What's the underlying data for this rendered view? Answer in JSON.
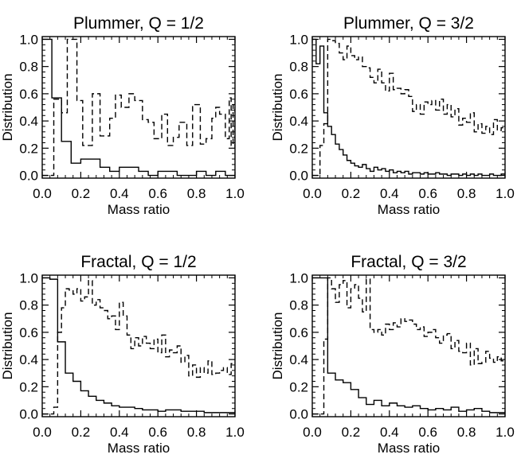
{
  "chart_data": [
    {
      "type": "step",
      "title": "Plummer, Q = 1/2",
      "xlabel": "Mass ratio",
      "ylabel": "Distribution",
      "xlim": [
        0,
        1
      ],
      "ylim": [
        -0.02,
        1.02
      ],
      "xticks": [
        "0.0",
        "0.2",
        "0.4",
        "0.6",
        "0.8",
        "1.0"
      ],
      "yticks": [
        "0.0",
        "0.2",
        "0.4",
        "0.6",
        "0.8",
        "1.0"
      ],
      "series": [
        {
          "style": "solid",
          "bin_width": 0.05,
          "values": [
            1.0,
            0.57,
            0.25,
            0.09,
            0.12,
            0.12,
            0.06,
            0.03,
            0.06,
            0.06,
            0.03,
            0.0,
            0.03,
            0.03,
            0.0,
            0.0,
            0.03,
            0.0,
            0.03,
            0.0
          ]
        },
        {
          "style": "dashed",
          "bin_width": 0.05,
          "values": [
            0.0,
            0.0,
            0.56,
            0.46,
            1.0,
            0.55,
            0.22,
            0.6,
            0.29,
            0.42,
            0.59,
            0.5,
            0.6,
            0.55,
            0.41,
            0.39,
            0.27,
            0.45,
            0.22,
            0.28,
            0.39,
            0.22,
            0.52,
            0.23,
            0.27,
            0.42,
            0.5,
            0.45,
            0.27,
            0.57,
            0.22,
            0.52,
            0.3,
            0.38,
            0.2,
            0.4,
            0.27,
            0.24
          ],
          "x": [
            0.0,
            0.05,
            0.06,
            0.1,
            0.13,
            0.18,
            0.21,
            0.26,
            0.3,
            0.35,
            0.38,
            0.41,
            0.45,
            0.48,
            0.52,
            0.55,
            0.58,
            0.62,
            0.65,
            0.68,
            0.71,
            0.75,
            0.78,
            0.82,
            0.85,
            0.88,
            0.9,
            0.92,
            0.95,
            0.97,
            0.98,
            0.99,
            1.0,
            1.0,
            1.0,
            1.0,
            1.0,
            1.0
          ]
        }
      ]
    },
    {
      "type": "step",
      "title": "Plummer, Q = 3/2",
      "xlabel": "Mass ratio",
      "ylabel": "Distribution",
      "xlim": [
        0,
        1
      ],
      "ylim": [
        -0.02,
        1.02
      ],
      "xticks": [
        "0.0",
        "0.2",
        "0.4",
        "0.6",
        "0.8",
        "1.0"
      ],
      "yticks": [
        "0.0",
        "0.2",
        "0.4",
        "0.6",
        "0.8",
        "1.0"
      ],
      "series": [
        {
          "style": "solid",
          "bin_width": 0.02,
          "values": [
            1.0,
            0.82,
            0.95,
            0.46,
            0.36,
            0.3,
            0.23,
            0.19,
            0.15,
            0.11,
            0.09,
            0.07,
            0.06,
            0.08,
            0.05,
            0.03,
            0.06,
            0.04,
            0.05,
            0.03,
            0.04,
            0.02,
            0.03,
            0.02,
            0.03,
            0.01,
            0.02,
            0.02,
            0.01,
            0.02,
            0.01,
            0.01,
            0.02,
            0.01,
            0.01,
            0.0,
            0.01,
            0.01,
            0.0,
            0.01,
            0.0,
            0.01,
            0.0,
            0.01,
            0.0,
            0.0,
            0.01,
            0.0,
            0.0,
            0.01
          ]
        },
        {
          "style": "dashed",
          "bin_width": 0.02,
          "values": [
            0.0,
            0.0,
            0.22,
            0.38,
            1.0,
            0.99,
            0.97,
            0.9,
            0.85,
            0.95,
            0.88,
            0.85,
            0.87,
            0.8,
            0.79,
            0.72,
            0.68,
            0.78,
            0.68,
            0.62,
            0.75,
            0.63,
            0.64,
            0.6,
            0.63,
            0.58,
            0.47,
            0.52,
            0.45,
            0.54,
            0.52,
            0.55,
            0.48,
            0.56,
            0.45,
            0.52,
            0.43,
            0.49,
            0.37,
            0.42,
            0.39,
            0.46,
            0.32,
            0.38,
            0.31,
            0.36,
            0.3,
            0.41,
            0.33,
            0.35
          ]
        }
      ]
    },
    {
      "type": "step",
      "title": "Fractal, Q = 1/2",
      "xlabel": "Mass ratio",
      "ylabel": "Distribution",
      "xlim": [
        0,
        1
      ],
      "ylim": [
        -0.02,
        1.02
      ],
      "xticks": [
        "0.0",
        "0.2",
        "0.4",
        "0.6",
        "0.8",
        "1.0"
      ],
      "yticks": [
        "0.0",
        "0.2",
        "0.4",
        "0.6",
        "0.8",
        "1.0"
      ],
      "series": [
        {
          "style": "solid",
          "bin_width": 0.04,
          "values": [
            1.0,
            0.99,
            0.53,
            0.3,
            0.24,
            0.17,
            0.13,
            0.1,
            0.08,
            0.06,
            0.05,
            0.05,
            0.04,
            0.03,
            0.03,
            0.02,
            0.03,
            0.03,
            0.02,
            0.02,
            0.02,
            0.01,
            0.01,
            0.01,
            0.01
          ]
        },
        {
          "style": "dashed",
          "bin_width": 0.02,
          "values": [
            0.0,
            0.0,
            0.0,
            0.05,
            0.6,
            0.78,
            0.92,
            0.91,
            0.88,
            0.92,
            0.83,
            0.86,
            0.98,
            0.8,
            0.84,
            0.78,
            0.76,
            0.7,
            0.72,
            0.62,
            0.82,
            0.72,
            0.58,
            0.48,
            0.56,
            0.5,
            0.57,
            0.52,
            0.48,
            0.55,
            0.45,
            0.58,
            0.42,
            0.47,
            0.45,
            0.5,
            0.38,
            0.43,
            0.28,
            0.36,
            0.27,
            0.34,
            0.3,
            0.39,
            0.29,
            0.3,
            0.32,
            0.34,
            0.29,
            0.37
          ]
        }
      ]
    },
    {
      "type": "step",
      "title": "Fractal, Q = 3/2",
      "xlabel": "Mass ratio",
      "ylabel": "Distribution",
      "xlim": [
        0,
        1
      ],
      "ylim": [
        -0.02,
        1.02
      ],
      "xticks": [
        "0.0",
        "0.2",
        "0.4",
        "0.6",
        "0.8",
        "1.0"
      ],
      "yticks": [
        "0.0",
        "0.2",
        "0.4",
        "0.6",
        "0.8",
        "1.0"
      ],
      "series": [
        {
          "style": "solid",
          "bin_width": 0.04,
          "values": [
            1.0,
            1.0,
            0.3,
            0.25,
            0.23,
            0.18,
            0.12,
            0.07,
            0.1,
            0.06,
            0.08,
            0.06,
            0.05,
            0.06,
            0.04,
            0.03,
            0.04,
            0.03,
            0.05,
            0.02,
            0.03,
            0.04,
            0.02,
            0.01,
            0.01
          ]
        },
        {
          "style": "dashed",
          "bin_width": 0.02,
          "values": [
            0.0,
            0.0,
            0.0,
            0.55,
            1.0,
            0.92,
            0.82,
            0.95,
            0.98,
            0.78,
            0.92,
            0.95,
            0.85,
            0.75,
            0.99,
            0.62,
            0.6,
            0.62,
            0.58,
            0.66,
            0.62,
            0.67,
            0.64,
            0.7,
            0.68,
            0.69,
            0.66,
            0.62,
            0.64,
            0.57,
            0.6,
            0.62,
            0.56,
            0.52,
            0.58,
            0.59,
            0.48,
            0.54,
            0.46,
            0.45,
            0.52,
            0.36,
            0.48,
            0.37,
            0.38,
            0.46,
            0.41,
            0.38,
            0.42,
            0.39
          ]
        }
      ]
    }
  ]
}
